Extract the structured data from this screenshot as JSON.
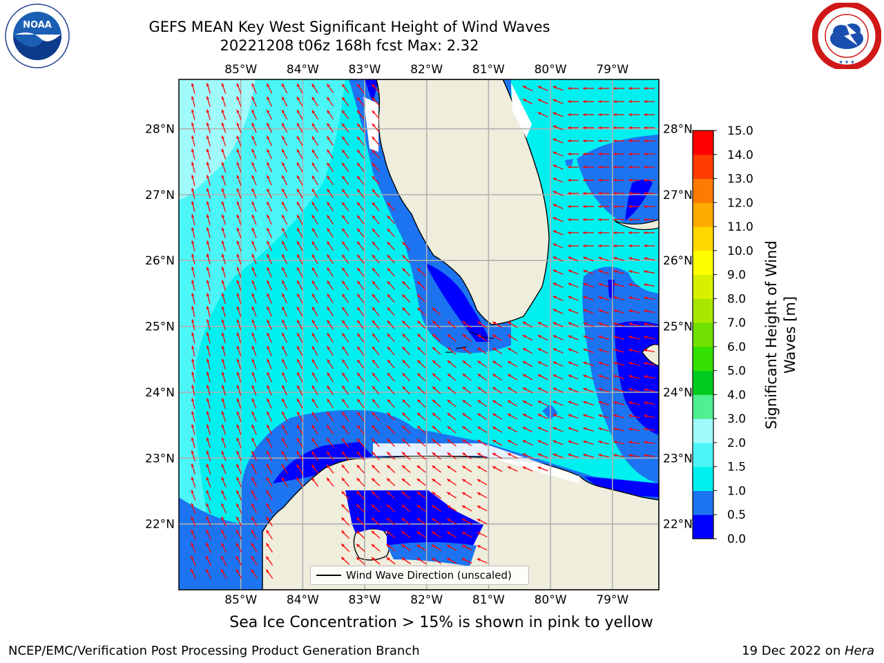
{
  "header": {
    "title_line1": "GEFS MEAN Key West Significant Height of Wind Waves",
    "title_line2": "20221208 t06z 168h fcst   Max: 2.32"
  },
  "logos": {
    "noaa": {
      "text": "NOAA",
      "ring_text": "NATIONAL OCEANIC AND ATMOSPHERIC ADMINISTRATION · U.S. DEPARTMENT OF COMMERCE"
    },
    "nws": {
      "ring_text": "NATIONAL WEATHER SERVICE"
    }
  },
  "map": {
    "lon_labels": [
      "85°W",
      "84°W",
      "83°W",
      "82°W",
      "81°W",
      "80°W",
      "79°W"
    ],
    "lat_labels": [
      "28°N",
      "27°N",
      "26°N",
      "25°N",
      "24°N",
      "23°N",
      "22°N"
    ],
    "lon_values": [
      -85,
      -84,
      -83,
      -82,
      -81,
      -80,
      -79
    ],
    "lat_values": [
      28,
      27,
      26,
      25,
      24,
      23,
      22
    ],
    "extent": {
      "lon_min": -86.0,
      "lon_max": -78.25,
      "lat_min": 21.0,
      "lat_max": 28.75
    },
    "legend_label": "Wind Wave Direction (unscaled)",
    "arrow_color": "#ff0000",
    "land_color": "#efeddc",
    "coast_color": "#000000",
    "grid_color": "#b0b0b0"
  },
  "colorbar": {
    "label_line1": "Significant Height of Wind",
    "label_line2": "Waves [m]",
    "ticks": [
      "0.0",
      "0.5",
      "1.0",
      "1.5",
      "2.0",
      "3.0",
      "4.0",
      "5.0",
      "6.0",
      "7.0",
      "8.0",
      "9.0",
      "10.0",
      "11.0",
      "12.0",
      "13.0",
      "14.0",
      "15.0"
    ],
    "colors": [
      "#0000ff",
      "#1c74f0",
      "#00f0f0",
      "#4cf6f6",
      "#a0fafa",
      "#4ff090",
      "#00cc20",
      "#33e000",
      "#70e000",
      "#a8e800",
      "#d8f000",
      "#ffff00",
      "#ffd800",
      "#ffaa00",
      "#ff7a00",
      "#ff3c00",
      "#ff0000"
    ]
  },
  "notes": {
    "sea_ice": "Sea Ice Concentration > 15% is shown in pink to yellow",
    "footer_left": "NCEP/EMC/Verification Post Processing Product Generation Branch",
    "footer_right_prefix": "19 Dec 2022 on ",
    "footer_right_host": "Hera"
  }
}
